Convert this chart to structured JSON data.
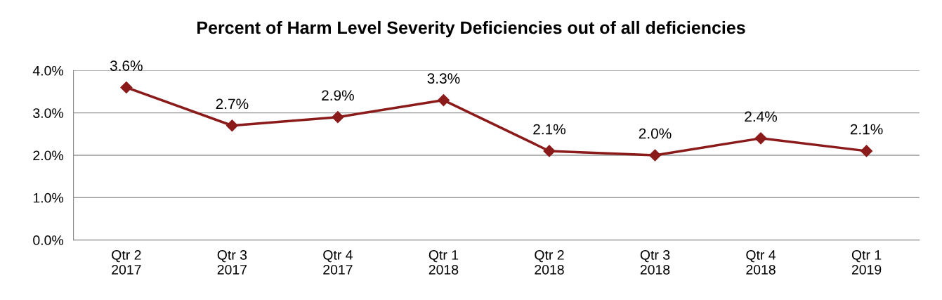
{
  "chart_data": {
    "type": "line",
    "title": "Percent of Harm Level Severity Deficiencies out of all deficiencies",
    "categories": [
      "Qtr 2\n2017",
      "Qtr 3\n2017",
      "Qtr 4\n2017",
      "Qtr 1\n2018",
      "Qtr 2\n2018",
      "Qtr 3\n2018",
      "Qtr 4\n2018",
      "Qtr 1\n2019"
    ],
    "series": [
      {
        "color": "#8b1a1a",
        "values": [
          3.6,
          2.7,
          2.9,
          3.3,
          2.1,
          2.0,
          2.4,
          2.1
        ],
        "value_labels": [
          "3.6%",
          "2.7%",
          "2.9%",
          "3.3%",
          "2.1%",
          "2.0%",
          "2.4%",
          "2.1%"
        ]
      }
    ],
    "ylim": [
      0,
      4
    ],
    "yticks": [
      {
        "value": 0,
        "label": "0.0%"
      },
      {
        "value": 1,
        "label": "1.0%"
      },
      {
        "value": 2,
        "label": "2.0%"
      },
      {
        "value": 3,
        "label": "3.0%"
      },
      {
        "value": 4,
        "label": "4.0%"
      }
    ],
    "grid": "y",
    "marker": "diamond",
    "line_style": "solid"
  }
}
